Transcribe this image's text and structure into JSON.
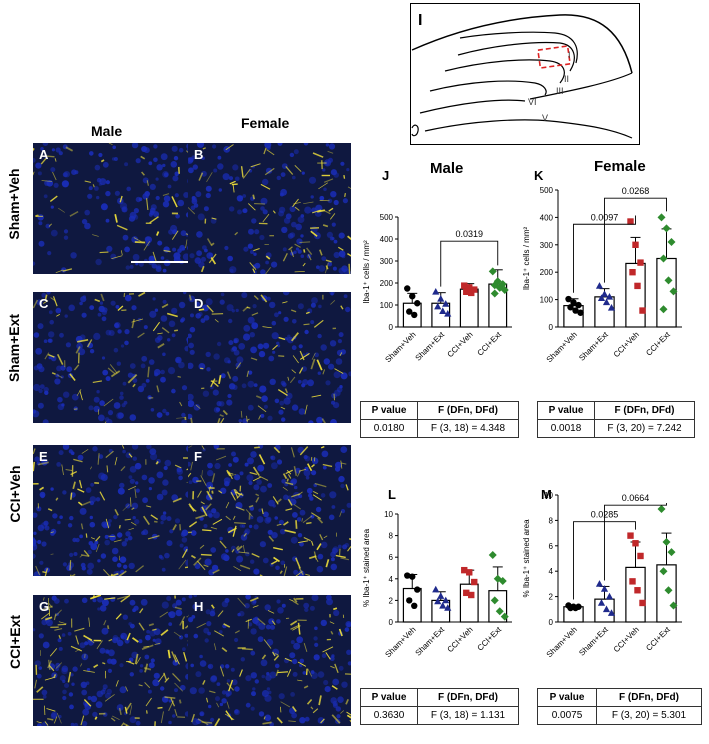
{
  "columns": {
    "male": "Male",
    "female": "Female"
  },
  "rows": [
    "Sham+Veh",
    "Sham+Ext",
    "CCI+Veh",
    "CCI+Ext"
  ],
  "micrograph_panels": [
    "A",
    "B",
    "C",
    "D",
    "E",
    "F",
    "G",
    "H"
  ],
  "schematic": {
    "letter": "I",
    "layers": [
      "I",
      "II",
      "III",
      "V",
      "VI"
    ]
  },
  "colors": {
    "veh_sham": "#000000",
    "ext_sham": "#1f2a8c",
    "veh_cci": "#c0282a",
    "ext_cci": "#2e8b2e",
    "nuclei": "#1a2db8",
    "iba": "#f2e23a"
  },
  "chart_data": [
    {
      "panel": "J",
      "title": "Male",
      "type": "bar",
      "ylabel": "Iba-1⁺ cells / mm²",
      "ylim": [
        0,
        500
      ],
      "yticks": [
        0,
        100,
        200,
        300,
        400,
        500
      ],
      "categories": [
        "Sham+Veh",
        "Sham+Ext",
        "CCI+Veh",
        "CCI+Ext"
      ],
      "means": [
        108,
        108,
        172,
        195
      ],
      "sd": [
        45,
        48,
        25,
        65
      ],
      "points": [
        [
          175,
          140,
          108,
          70,
          55
        ],
        [
          160,
          128,
          105,
          93,
          72,
          60
        ],
        [
          188,
          180,
          170,
          160,
          155
        ],
        [
          253,
          208,
          195,
          190,
          178,
          168,
          152
        ]
      ],
      "markers": [
        "circle",
        "triangle",
        "square",
        "diamond"
      ],
      "comparisons": [
        {
          "from": 1,
          "to": 3,
          "p": "0.0319",
          "y": 390
        }
      ],
      "stats": {
        "header": [
          "P value",
          "F (DFn, DFd)"
        ],
        "values": [
          "0.0180",
          "F (3, 18) = 4.348"
        ]
      }
    },
    {
      "panel": "K",
      "title": "Female",
      "type": "bar",
      "ylabel": "Iba-1⁺ cells / mm²",
      "ylim": [
        0,
        500
      ],
      "yticks": [
        0,
        100,
        200,
        300,
        400,
        500
      ],
      "categories": [
        "Sham+Veh",
        "Sham+Ext",
        "CCI+Veh",
        "CCI+Ext"
      ],
      "means": [
        78,
        110,
        232,
        250
      ],
      "sd": [
        25,
        30,
        95,
        108
      ],
      "points": [
        [
          102,
          90,
          80,
          72,
          60,
          52
        ],
        [
          150,
          120,
          110,
          105,
          90,
          70
        ],
        [
          385,
          300,
          235,
          200,
          150,
          60
        ],
        [
          400,
          360,
          310,
          250,
          170,
          130,
          65
        ]
      ],
      "markers": [
        "circle",
        "triangle",
        "square",
        "diamond"
      ],
      "comparisons": [
        {
          "from": 0,
          "to": 2,
          "p": "0.0097",
          "y": 375
        },
        {
          "from": 1,
          "to": 3,
          "p": "0.0268",
          "y": 470
        }
      ],
      "stats": {
        "header": [
          "P value",
          "F (DFn, DFd)"
        ],
        "values": [
          "0.0018",
          "F (3, 20) = 7.242"
        ]
      }
    },
    {
      "panel": "L",
      "title": "",
      "type": "bar",
      "ylabel": "% Iba-1⁺ stained area",
      "ylim": [
        0,
        10
      ],
      "yticks": [
        0,
        2,
        4,
        6,
        8,
        10
      ],
      "categories": [
        "Sham+Veh",
        "Sham+Ext",
        "CCI+Veh",
        "CCI+Ext"
      ],
      "means": [
        3.1,
        2.0,
        3.5,
        2.9
      ],
      "sd": [
        1.3,
        0.8,
        1.3,
        2.2
      ],
      "points": [
        [
          4.3,
          4.2,
          3.0,
          2.0,
          1.5
        ],
        [
          3.0,
          2.4,
          2.0,
          1.9,
          1.5,
          1.3
        ],
        [
          4.8,
          4.6,
          3.7,
          2.7,
          2.5
        ],
        [
          6.2,
          4.0,
          3.8,
          2.0,
          1.0,
          0.5
        ]
      ],
      "markers": [
        "circle",
        "triangle",
        "square",
        "diamond"
      ],
      "comparisons": [],
      "stats": {
        "header": [
          "P value",
          "F (DFn, DFd)"
        ],
        "values": [
          "0.3630",
          "F (3, 18) = 1.131"
        ]
      }
    },
    {
      "panel": "M",
      "title": "",
      "type": "bar",
      "ylabel": "% Iba-1⁺ stained area",
      "ylim": [
        0,
        10
      ],
      "yticks": [
        0,
        2,
        4,
        6,
        8,
        10
      ],
      "categories": [
        "Sham+Veh",
        "Sham+Ext",
        "CCI+Veh",
        "CCI+Ext"
      ],
      "means": [
        1.2,
        1.8,
        4.3,
        4.5
      ],
      "sd": [
        0.1,
        1.0,
        2.0,
        2.5
      ],
      "points": [
        [
          1.3,
          1.2,
          1.2,
          1.1,
          1.1
        ],
        [
          3.0,
          2.6,
          2.0,
          1.5,
          1.0,
          0.7
        ],
        [
          6.8,
          6.2,
          5.2,
          3.2,
          2.5,
          1.5
        ],
        [
          8.9,
          6.3,
          5.5,
          4.0,
          2.5,
          1.3
        ]
      ],
      "markers": [
        "circle",
        "triangle",
        "square",
        "diamond"
      ],
      "comparisons": [
        {
          "from": 0,
          "to": 2,
          "p": "0.0285",
          "y": 7.9
        },
        {
          "from": 1,
          "to": 3,
          "p": "0.0664",
          "y": 9.2
        }
      ],
      "stats": {
        "header": [
          "P value",
          "F (DFn, DFd)"
        ],
        "values": [
          "0.0075",
          "F (3, 20) = 5.301"
        ]
      }
    }
  ]
}
